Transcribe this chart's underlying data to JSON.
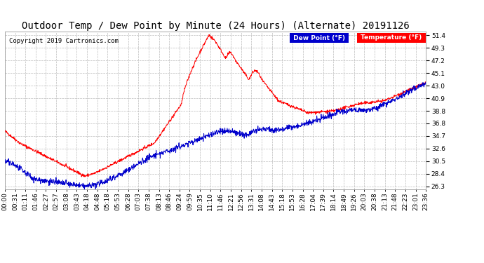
{
  "title": "Outdoor Temp / Dew Point by Minute (24 Hours) (Alternate) 20191126",
  "copyright": "Copyright 2019 Cartronics.com",
  "ylabel_right_ticks": [
    26.3,
    28.4,
    30.5,
    32.6,
    34.7,
    36.8,
    38.8,
    40.9,
    43.0,
    45.1,
    47.2,
    49.3,
    51.4
  ],
  "ylim": [
    25.8,
    52.0
  ],
  "xlim_minutes": [
    0,
    1439
  ],
  "xtick_labels": [
    "00:00",
    "00:31",
    "01:11",
    "01:46",
    "02:27",
    "02:57",
    "03:08",
    "03:43",
    "04:18",
    "04:48",
    "05:18",
    "05:53",
    "06:28",
    "07:03",
    "07:38",
    "08:13",
    "08:46",
    "09:24",
    "09:59",
    "10:35",
    "11:10",
    "11:46",
    "12:21",
    "12:56",
    "13:31",
    "14:08",
    "14:43",
    "15:18",
    "15:53",
    "16:28",
    "17:04",
    "17:39",
    "18:14",
    "18:49",
    "19:26",
    "20:03",
    "20:38",
    "21:13",
    "21:48",
    "22:23",
    "23:01",
    "23:36"
  ],
  "temp_color": "#ff0000",
  "dewpoint_color": "#0000cc",
  "bg_color": "#ffffff",
  "grid_color": "#bbbbbb",
  "title_fontsize": 10,
  "tick_fontsize": 6.5,
  "legend_temp_label": "Temperature (°F)",
  "legend_dew_label": "Dew Point (°F)"
}
